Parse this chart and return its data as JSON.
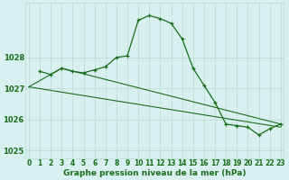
{
  "line1_x": [
    1,
    2,
    3,
    4,
    5,
    6,
    7,
    8,
    9,
    10,
    11,
    12,
    13,
    14,
    15,
    16,
    17,
    18,
    19,
    20,
    21,
    22,
    23
  ],
  "line1_y": [
    1027.55,
    1027.45,
    1027.65,
    1027.55,
    1027.5,
    1027.6,
    1027.7,
    1028.0,
    1028.05,
    1029.2,
    1029.35,
    1029.25,
    1029.1,
    1028.6,
    1027.65,
    1027.1,
    1026.55,
    1025.85,
    1025.8,
    1025.75,
    1025.5,
    1025.7,
    1025.85
  ],
  "line2_x": [
    0,
    23
  ],
  "line2_y": [
    1027.05,
    1025.75
  ],
  "line3_x": [
    0,
    3,
    23
  ],
  "line3_y": [
    1027.05,
    1027.65,
    1025.85
  ],
  "line_color": "#1a6e1a",
  "bg_color": "#d8f0f0",
  "grid_color": "#b8ddd0",
  "xlabel": "Graphe pression niveau de la mer (hPa)",
  "ylim": [
    1024.75,
    1029.75
  ],
  "xlim": [
    -0.3,
    23.3
  ],
  "yticks": [
    1025,
    1026,
    1027,
    1028
  ],
  "xticks": [
    0,
    1,
    2,
    3,
    4,
    5,
    6,
    7,
    8,
    9,
    10,
    11,
    12,
    13,
    14,
    15,
    16,
    17,
    18,
    19,
    20,
    21,
    22,
    23
  ],
  "xlabel_fontsize": 6.5,
  "tick_fontsize": 5.5
}
